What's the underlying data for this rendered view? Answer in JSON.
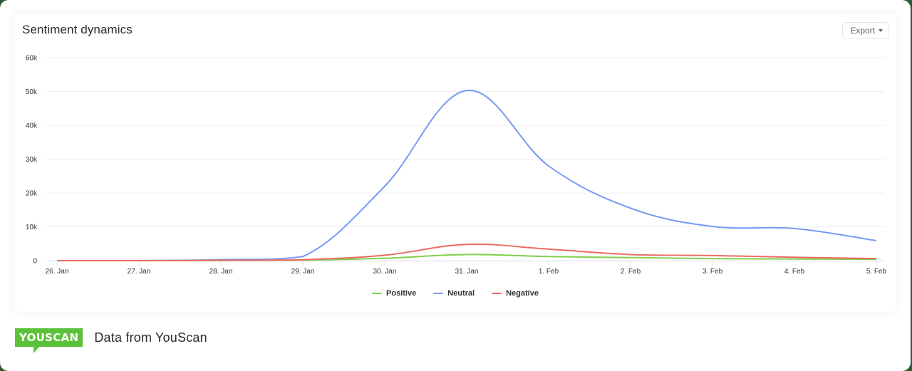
{
  "card": {
    "title": "Sentiment dynamics",
    "export_label": "Export"
  },
  "footer": {
    "logo_text": "YOUSCAN",
    "text": "Data from YouScan"
  },
  "colors": {
    "positive": "#7ed04b",
    "neutral": "#7899f5",
    "negative": "#ec6b63",
    "grid": "#efefef",
    "axis": "#dde3f0",
    "brand": "#5cc13a"
  },
  "legend": [
    {
      "label": "Positive",
      "color": "#7ed04b"
    },
    {
      "label": "Neutral",
      "color": "#7899f5"
    },
    {
      "label": "Negative",
      "color": "#ec6b63"
    }
  ],
  "chart_data": {
    "type": "line",
    "title": "Sentiment dynamics",
    "xlabel": "",
    "ylabel": "",
    "x": [
      "26. Jan",
      "27. Jan",
      "28. Jan",
      "29. Jan",
      "30. Jan",
      "31. Jan",
      "1. Feb",
      "2. Feb",
      "3. Feb",
      "4. Feb",
      "5. Feb"
    ],
    "y_ticks": [
      "0",
      "10k",
      "20k",
      "30k",
      "40k",
      "50k",
      "60k"
    ],
    "ylim": [
      0,
      60000
    ],
    "grid": true,
    "legend_position": "bottom-center",
    "smooth": true,
    "series": [
      {
        "name": "Positive",
        "color": "#7ed04b",
        "values": [
          0,
          0,
          50,
          150,
          700,
          1800,
          1200,
          900,
          600,
          500,
          400
        ]
      },
      {
        "name": "Neutral",
        "color": "#7899f5",
        "values": [
          0,
          0,
          300,
          1200,
          22000,
          50300,
          28000,
          15500,
          10100,
          9500,
          5900
        ]
      },
      {
        "name": "Negative",
        "color": "#ec6b63",
        "values": [
          0,
          0,
          100,
          300,
          1600,
          4800,
          3400,
          1800,
          1500,
          1000,
          600
        ]
      }
    ]
  }
}
